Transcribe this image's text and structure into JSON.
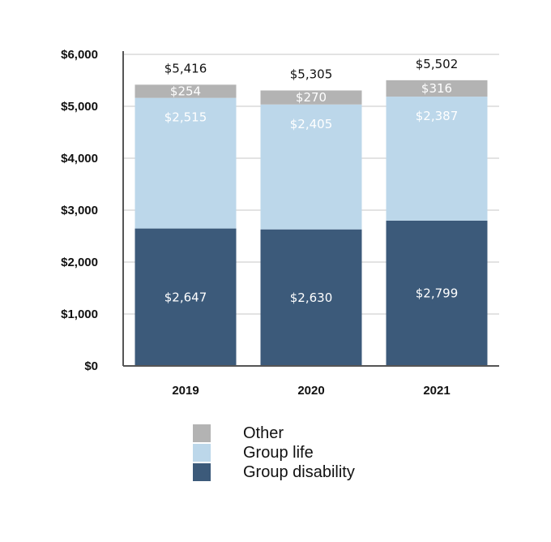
{
  "chart_data": {
    "type": "bar",
    "stacked": true,
    "categories": [
      "2019",
      "2020",
      "2021"
    ],
    "series": [
      {
        "name": "Group disability",
        "color": "#3c5a7a",
        "values": [
          2647,
          2630,
          2799
        ],
        "labels": [
          "$2,647",
          "$2,630",
          "$2,799"
        ]
      },
      {
        "name": "Group life",
        "color": "#bcd7ea",
        "values": [
          2515,
          2405,
          2387
        ],
        "labels": [
          "$2,515",
          "$2,405",
          "$2,387"
        ]
      },
      {
        "name": "Other",
        "color": "#b3b3b3",
        "values": [
          254,
          270,
          316
        ],
        "labels": [
          "$254",
          "$270",
          "$316"
        ]
      }
    ],
    "totals": [
      5416,
      5305,
      5502
    ],
    "total_labels": [
      "$5,416",
      "$5,305",
      "$5,502"
    ],
    "ylim": [
      0,
      6000
    ],
    "yticks": [
      0,
      1000,
      2000,
      3000,
      4000,
      5000,
      6000
    ],
    "ytick_labels": [
      "$0",
      "$1,000",
      "$2,000",
      "$3,000",
      "$4,000",
      "$5,000",
      "$6,000"
    ],
    "grid": true,
    "legend_position": "bottom"
  },
  "legend": {
    "items": [
      {
        "label": "Other",
        "color": "#b3b3b3"
      },
      {
        "label": "Group life",
        "color": "#bcd7ea"
      },
      {
        "label": "Group disability",
        "color": "#3c5a7a"
      }
    ]
  }
}
